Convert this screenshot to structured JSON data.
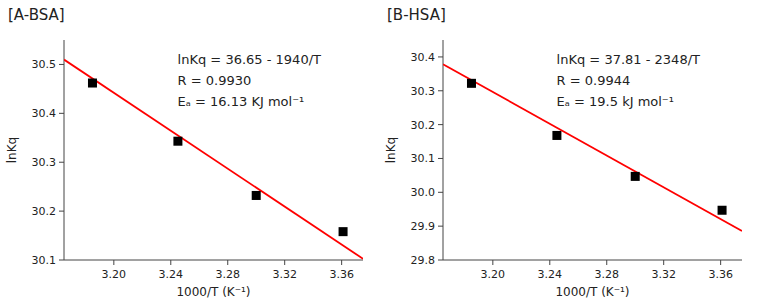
{
  "chart_data": [
    {
      "type": "scatter",
      "title": "[A-BSA]",
      "x_label": "1000/T (K⁻¹)",
      "y_label": "lnKq",
      "annotations": [
        "lnKq = 36.65 - 1940/T",
        "R = 0.9930",
        "Eₐ = 16.13 KJ mol⁻¹"
      ],
      "series": [
        {
          "type": "scatter",
          "marker": "square",
          "color": "#000000",
          "x": [
            3.185,
            3.245,
            3.3,
            3.361
          ],
          "values": [
            30.462,
            30.343,
            30.232,
            30.158
          ]
        },
        {
          "type": "line",
          "line_style": "solid",
          "color": "#FF0000",
          "x": [
            3.165,
            3.375
          ],
          "values": [
            30.5099,
            30.1025
          ]
        }
      ],
      "xlim": [
        3.165,
        3.375
      ],
      "xticks": [
        {
          "value": 3.2,
          "label": "3.20"
        },
        3.24,
        3.28,
        3.32,
        3.36
      ],
      "ylim": [
        30.1,
        30.55
      ],
      "yticks": [
        30.1,
        30.2,
        30.3,
        30.4,
        30.5
      ],
      "grid": false
    },
    {
      "type": "scatter",
      "title": "[B-HSA]",
      "x_label": "1000/T (K⁻¹)",
      "y_label": "lnKq",
      "annotations": [
        "lnKq = 37.81 - 2348/T",
        "R = 0.9944",
        "Eₐ = 19.5 kJ mol⁻¹"
      ],
      "series": [
        {
          "type": "scatter",
          "marker": "square",
          "color": "#000000",
          "x": [
            3.185,
            3.245,
            3.3,
            3.361
          ],
          "values": [
            30.322,
            30.168,
            30.047,
            29.947
          ]
        },
        {
          "type": "line",
          "line_style": "solid",
          "color": "#FF0000",
          "x": [
            3.165,
            3.375
          ],
          "values": [
            30.37858,
            29.8855
          ]
        }
      ],
      "xlim": [
        3.165,
        3.375
      ],
      "xticks": [
        {
          "value": 3.2,
          "label": "3.20"
        },
        3.24,
        3.28,
        3.32,
        3.36
      ],
      "ylim": [
        29.8,
        30.45
      ],
      "yticks": [
        29.8,
        29.9,
        {
          "value": 30.0,
          "label": "30.0"
        },
        30.1,
        30.2,
        30.3,
        30.4
      ],
      "grid": false
    }
  ]
}
